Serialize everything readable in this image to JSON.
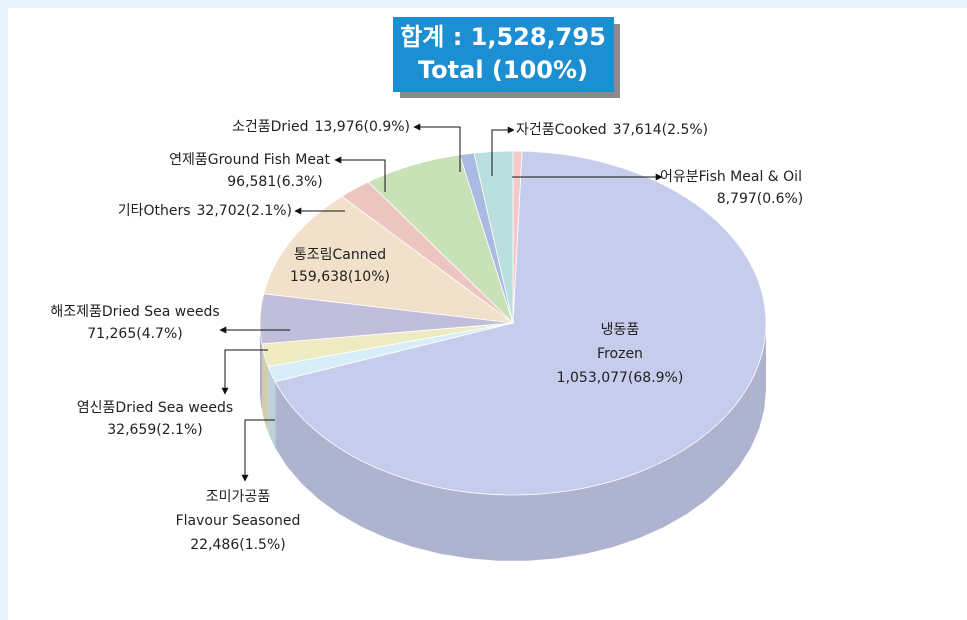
{
  "chart_data": {
    "type": "pie",
    "view": "3d",
    "title": "합계 : 1,528,795",
    "subtitle": "Total (100%)",
    "categories": [
      [
        "어유분Fish Meal & Oil"
      ],
      [
        "냉동품",
        "Frozen"
      ],
      [
        "조미가공품",
        "Flavour Seasoned"
      ],
      [
        "염신품Dried Sea weeds"
      ],
      [
        "해조제품Dried Sea weeds"
      ],
      [
        "통조림Canned"
      ],
      [
        "기타Others"
      ],
      [
        "연제품Ground Fish Meat"
      ],
      [
        "소건품Dried"
      ],
      [
        "자건품Cooked"
      ]
    ],
    "values": [
      8797,
      1053077,
      22486,
      32659,
      71265,
      159638,
      32702,
      96581,
      13976,
      37614
    ],
    "value_labels": [
      "8,797(0.6%)",
      "1,053,077(68.9%)",
      "22,486(1.5%)",
      "32,659(2.1%)",
      "71,265(4.7%)",
      "159,638(10%)",
      "32,702(2.1%)",
      "96,581(6.3%)",
      "13,976(0.9%)",
      "37,614(2.5%)"
    ],
    "colors": [
      "#f5c9c9",
      "#c6cceb",
      "#d7eef9",
      "#eeebc2",
      "#c1bedb",
      "#f2e1ca",
      "#edc6c2",
      "#c9e1b6",
      "#aabae2",
      "#b9dfde"
    ],
    "start_angle": -90
  }
}
